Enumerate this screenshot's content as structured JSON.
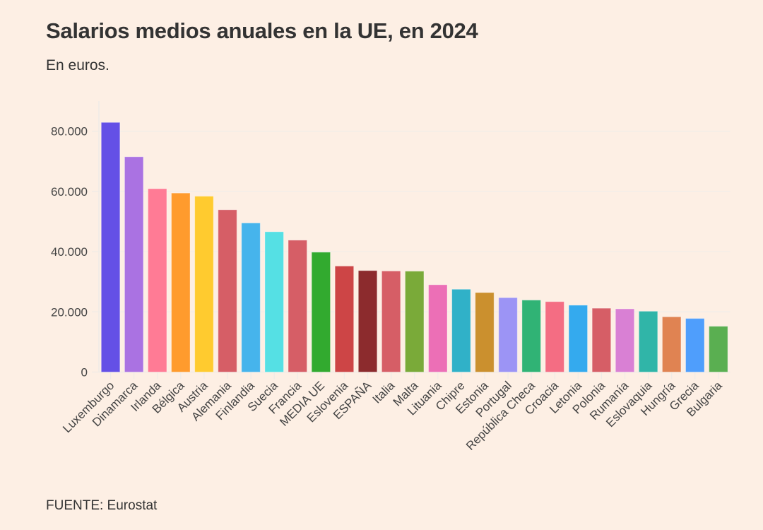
{
  "header": {
    "title": "Salarios medios anuales en la UE, en 2024",
    "subtitle": "En euros."
  },
  "footer": {
    "source": "FUENTE: Eurostat"
  },
  "chart_data": {
    "type": "bar",
    "title": "Salarios medios anuales en la UE, en 2024",
    "subtitle": "En euros.",
    "xlabel": "",
    "ylabel": "",
    "ylim": [
      0,
      90000
    ],
    "yticks": [
      0,
      20000,
      40000,
      60000,
      80000
    ],
    "ytick_labels": [
      "0",
      "20.000",
      "40.000",
      "60.000",
      "80.000"
    ],
    "grid": true,
    "legend": "none",
    "categories": [
      "Luxemburgo",
      "Dinamarca",
      "Irlanda",
      "Bélgica",
      "Austria",
      "Alemania",
      "Finlandia",
      "Suecia",
      "Francia",
      "MEDIA UE",
      "Eslovenia",
      "ESPAÑA",
      "Italia",
      "Malta",
      "Lituania",
      "Chipre",
      "Estonia",
      "Portugal",
      "República Checa",
      "Croacia",
      "Letonia",
      "Polonia",
      "Rumanía",
      "Eslovaquia",
      "Hungría",
      "Grecia",
      "Bulgaria"
    ],
    "values": [
      82900,
      71500,
      60900,
      59450,
      58400,
      53900,
      49500,
      46600,
      43800,
      39800,
      35200,
      33700,
      33550,
      33500,
      29000,
      27500,
      26400,
      24700,
      23900,
      23400,
      22200,
      21200,
      21000,
      20200,
      18350,
      17800,
      15200
    ],
    "colors": [
      "#6450e6",
      "#aa72e2",
      "#ff7b95",
      "#ff9b2d",
      "#ffcb2f",
      "#d65e66",
      "#46b4ec",
      "#55e0e4",
      "#d65e66",
      "#32aa2f",
      "#cd4546",
      "#8c2b2d",
      "#d65e66",
      "#7aaa39",
      "#ec6fb6",
      "#30b1c8",
      "#cb902e",
      "#9c94f5",
      "#30b375",
      "#f46d83",
      "#34aaee",
      "#d65e66",
      "#d980d4",
      "#30b5a8",
      "#e08352",
      "#4f9efc",
      "#5aaf51"
    ],
    "source": "FUENTE: Eurostat"
  }
}
